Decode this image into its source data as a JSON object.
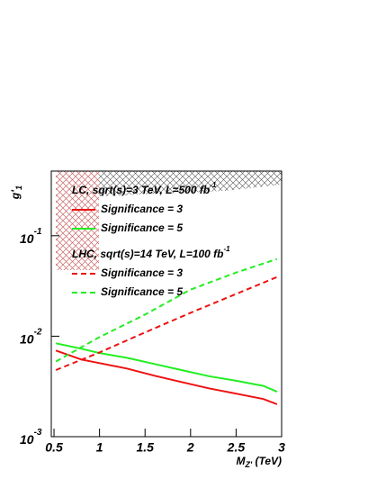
{
  "chart_data": {
    "type": "line",
    "x_label": "M",
    "x_label_sub": "Z'",
    "x_label_rest": " (TeV)",
    "y_label": "g'",
    "y_label_sub": "1",
    "xlim": [
      0.47,
      3.0
    ],
    "xticks": [
      0.5,
      1,
      1.5,
      2,
      2.5,
      3
    ],
    "ylim": [
      0.001,
      0.44
    ],
    "log_y": true,
    "yticks": [
      {
        "value": 0.001,
        "label": "10",
        "exponent": "-3"
      },
      {
        "value": 0.01,
        "label": "10",
        "exponent": "-2"
      },
      {
        "value": 0.1,
        "label": "10",
        "exponent": "-1"
      }
    ],
    "legend_groups": [
      {
        "title": "LC, sqrt(s)=3 TeV, L=500 fb",
        "title_sup": "-1"
      },
      {
        "title": "LHC, sqrt(s)=14 TeV, L=100 fb",
        "title_sup": "-1"
      }
    ],
    "series": [
      {
        "name": "Significance = 3",
        "group": 0,
        "color": "#ee1111",
        "dashed": false,
        "x": [
          0.52,
          0.8,
          1.0,
          1.3,
          1.6,
          1.9,
          2.2,
          2.5,
          2.8,
          2.95
        ],
        "values": [
          0.0072,
          0.00586,
          0.0054,
          0.00477,
          0.00405,
          0.0035,
          0.00303,
          0.00268,
          0.00237,
          0.0021
        ]
      },
      {
        "name": "Significance = 5",
        "group": 0,
        "color": "#22ee22",
        "dashed": false,
        "x": [
          0.52,
          0.8,
          1.0,
          1.3,
          1.6,
          1.9,
          2.2,
          2.5,
          2.8,
          2.95
        ],
        "values": [
          0.0085,
          0.0075,
          0.0068,
          0.0061,
          0.0053,
          0.0046,
          0.004,
          0.0036,
          0.0032,
          0.0028
        ]
      },
      {
        "name": "Significance = 3",
        "group": 1,
        "color": "#ee1111",
        "dashed": true,
        "x": [
          0.52,
          1.0,
          1.5,
          2.0,
          2.5,
          2.95
        ],
        "values": [
          0.0046,
          0.0069,
          0.0109,
          0.0171,
          0.0263,
          0.0388
        ]
      },
      {
        "name": "Significance = 5",
        "group": 1,
        "color": "#22ee22",
        "dashed": true,
        "x": [
          0.52,
          1.0,
          1.5,
          2.0,
          2.5,
          2.95
        ],
        "values": [
          0.0056,
          0.0098,
          0.0164,
          0.0291,
          0.043,
          0.0586
        ]
      }
    ]
  }
}
